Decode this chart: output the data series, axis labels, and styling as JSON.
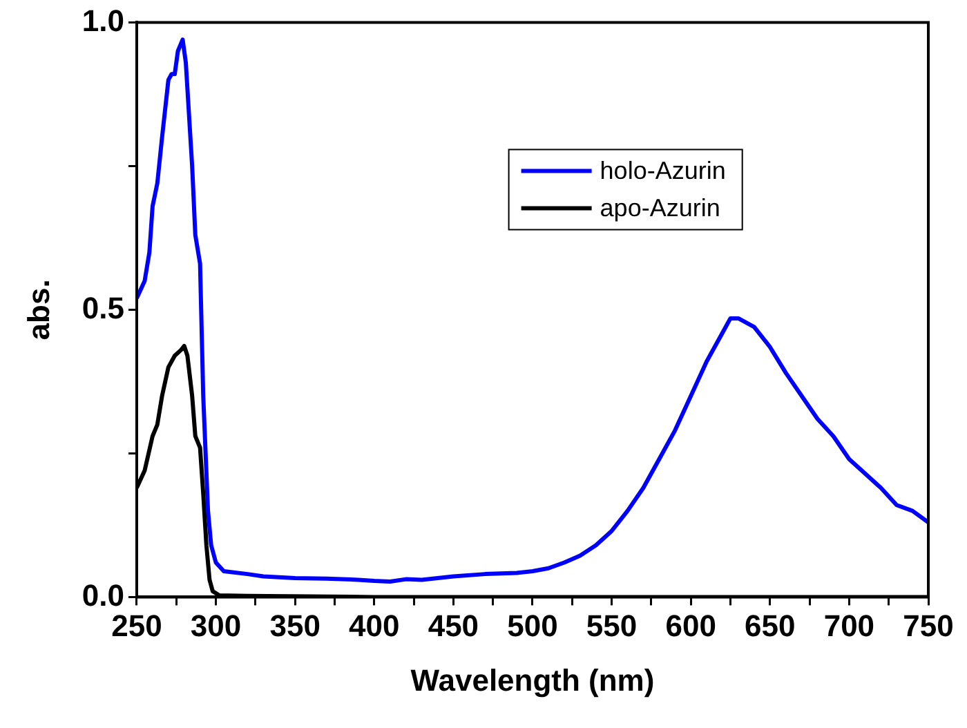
{
  "chart_data": {
    "type": "line",
    "xlabel": "Wavelength (nm)",
    "ylabel": "abs.",
    "xlim": [
      250,
      750
    ],
    "xticks": [
      250,
      {
        "value": 275,
        "label": null
      },
      300,
      {
        "value": 325,
        "label": null
      },
      350,
      {
        "value": 375,
        "label": null
      },
      400,
      {
        "value": 425,
        "label": null
      },
      450,
      {
        "value": 475,
        "label": null
      },
      500,
      {
        "value": 525,
        "label": null
      },
      550,
      {
        "value": 575,
        "label": null
      },
      600,
      {
        "value": 625,
        "label": null
      },
      650,
      {
        "value": 675,
        "label": null
      },
      700,
      {
        "value": 725,
        "label": null
      },
      750
    ],
    "ylim": [
      0,
      1
    ],
    "yticks": [
      {
        "value": 0,
        "label": "0.0"
      },
      {
        "value": 0.25,
        "label": null
      },
      {
        "value": 0.5,
        "label": "0.5"
      },
      {
        "value": 0.75,
        "label": null
      },
      {
        "value": 1,
        "label": "1.0"
      }
    ],
    "grid": false,
    "legend": "top right",
    "marker": "none",
    "line_style": "solid",
    "series": [
      {
        "name": "holo-Azurin",
        "color": "#0000ff",
        "x": [
          250,
          255,
          258,
          260,
          263,
          266,
          270,
          272,
          274,
          276,
          279,
          281,
          285,
          287,
          290,
          292,
          295,
          297,
          300,
          305,
          320,
          330,
          350,
          370,
          390,
          400,
          410,
          420,
          430,
          450,
          470,
          490,
          500,
          510,
          520,
          530,
          540,
          550,
          560,
          570,
          580,
          590,
          600,
          610,
          620,
          625,
          630,
          640,
          650,
          660,
          670,
          680,
          690,
          700,
          710,
          720,
          730,
          740,
          750
        ],
        "values": [
          0.52,
          0.55,
          0.6,
          0.68,
          0.72,
          0.8,
          0.9,
          0.91,
          0.91,
          0.95,
          0.97,
          0.93,
          0.75,
          0.63,
          0.58,
          0.35,
          0.15,
          0.09,
          0.06,
          0.045,
          0.04,
          0.036,
          0.033,
          0.032,
          0.03,
          0.028,
          0.027,
          0.031,
          0.03,
          0.036,
          0.04,
          0.042,
          0.045,
          0.05,
          0.06,
          0.072,
          0.09,
          0.115,
          0.15,
          0.19,
          0.24,
          0.29,
          0.35,
          0.41,
          0.46,
          0.485,
          0.485,
          0.47,
          0.435,
          0.39,
          0.35,
          0.31,
          0.28,
          0.24,
          0.215,
          0.19,
          0.16,
          0.15,
          0.13
        ]
      },
      {
        "name": "apo-Azurin",
        "color": "#000000",
        "x": [
          250,
          255,
          260,
          263,
          266,
          270,
          274,
          278,
          280,
          282,
          285,
          287,
          290,
          292,
          294,
          296,
          298,
          302,
          320,
          400,
          500,
          600,
          750
        ],
        "values": [
          0.19,
          0.22,
          0.28,
          0.3,
          0.35,
          0.4,
          0.42,
          0.43,
          0.437,
          0.42,
          0.35,
          0.28,
          0.26,
          0.18,
          0.09,
          0.03,
          0.01,
          0.003,
          0.002,
          0,
          0,
          0,
          0
        ]
      }
    ]
  }
}
